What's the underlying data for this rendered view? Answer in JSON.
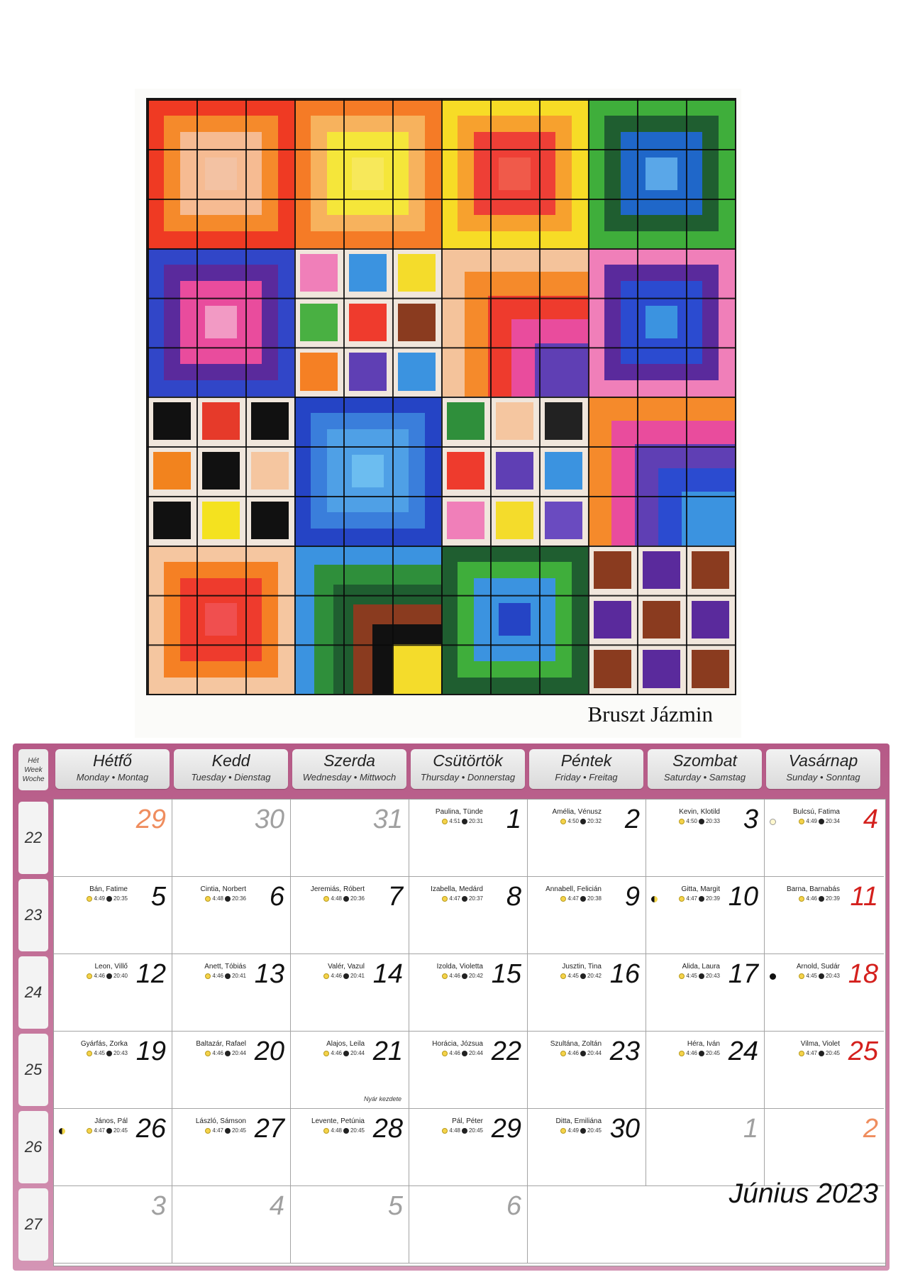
{
  "artwork": {
    "artist": "Bruszt Jázmin",
    "blocks": [
      {
        "type": "concentric",
        "colors": [
          "#ef3a23",
          "#f58a2b",
          "#f6bb92",
          "#f3c2a3"
        ]
      },
      {
        "type": "concentric",
        "colors": [
          "#f57b26",
          "#f7b25d",
          "#f5e63a",
          "#f7e85a"
        ]
      },
      {
        "type": "concentric",
        "colors": [
          "#f7dc26",
          "#f7a12e",
          "#ee3f36",
          "#f05a4a"
        ]
      },
      {
        "type": "concentric",
        "colors": [
          "#3fae3b",
          "#1f5e30",
          "#1f67c9",
          "#5aa7e8"
        ]
      },
      {
        "type": "concentric",
        "colors": [
          "#3146c8",
          "#5a2a9c",
          "#e94c9d",
          "#f29ac4"
        ]
      },
      {
        "type": "cells",
        "cells": [
          "#f07fb9",
          "#3b93e0",
          "#f4dc2b",
          "#49b042",
          "#ef3b2d",
          "#8a3b1f",
          "#f58024",
          "#5f3fb4",
          "#3b93e0"
        ]
      },
      {
        "type": "l-bands",
        "colors": [
          "#f4c39b",
          "#f58a2b",
          "#ee3b2d",
          "#e94c9d",
          "#5f3fb4"
        ]
      },
      {
        "type": "concentric",
        "colors": [
          "#f07fb9",
          "#5a2a9c",
          "#2b4bd0",
          "#3b93e0"
        ]
      },
      {
        "type": "cells",
        "cells": [
          "#111111",
          "#e63a2a",
          "#111111",
          "#f2831e",
          "#111111",
          "#f5c6a0",
          "#111111",
          "#f4e21f",
          "#111111"
        ]
      },
      {
        "type": "concentric",
        "colors": [
          "#2544c5",
          "#3a7edb",
          "#4fa0e6",
          "#6cbdf0"
        ]
      },
      {
        "type": "cells",
        "cells": [
          "#2f8f3b",
          "#f5c6a0",
          "#222222",
          "#ee3b2d",
          "#5f3fb4",
          "#3b93e0",
          "#f07fb9",
          "#f4dc2b",
          "#6a4bc0"
        ]
      },
      {
        "type": "l-bands",
        "colors": [
          "#f58a2b",
          "#e94c9d",
          "#5f3fb4",
          "#2b4bd0",
          "#3b93e0"
        ]
      },
      {
        "type": "concentric",
        "colors": [
          "#f5c6a0",
          "#f58024",
          "#ee3b2d",
          "#f04f4f"
        ]
      },
      {
        "type": "l-bands",
        "colors": [
          "#3b93e0",
          "#2f8f3b",
          "#1f5e30",
          "#8a3b1f",
          "#111111",
          "#f4dc2b"
        ]
      },
      {
        "type": "concentric",
        "colors": [
          "#1f5e30",
          "#3fae3b",
          "#3b93e0",
          "#2544c5"
        ]
      },
      {
        "type": "cells",
        "cells": [
          "#8a3b1f",
          "#5a2a9c",
          "#8a3b1f",
          "#5a2a9c",
          "#8a3b1f",
          "#5a2a9c",
          "#8a3b1f",
          "#5a2a9c",
          "#8a3b1f"
        ]
      }
    ]
  },
  "calendar": {
    "week_header": [
      "Hét",
      "Week",
      "Woche"
    ],
    "days": [
      {
        "name": "Hétfő",
        "sub": "Monday • Montag"
      },
      {
        "name": "Kedd",
        "sub": "Tuesday • Dienstag"
      },
      {
        "name": "Szerda",
        "sub": "Wednesday • Mittwoch"
      },
      {
        "name": "Csütörtök",
        "sub": "Thursday • Donnerstag"
      },
      {
        "name": "Péntek",
        "sub": "Friday • Freitag"
      },
      {
        "name": "Szombat",
        "sub": "Saturday • Samstag"
      },
      {
        "name": "Vasárnap",
        "sub": "Sunday • Sonntag"
      }
    ],
    "weeks": [
      "22",
      "23",
      "24",
      "25",
      "26",
      "27"
    ],
    "cells": [
      [
        {
          "n": "29",
          "c": "orange"
        },
        {
          "n": "30",
          "c": "gray"
        },
        {
          "n": "31",
          "c": "gray"
        },
        {
          "n": "1",
          "names": "Paulina, Tünde",
          "rise": "4:51",
          "set": "20:31"
        },
        {
          "n": "2",
          "names": "Amélia, Vénusz",
          "rise": "4:50",
          "set": "20:32"
        },
        {
          "n": "3",
          "names": "Kevin, Klotild",
          "rise": "4:50",
          "set": "20:33"
        },
        {
          "n": "4",
          "c": "red",
          "names": "Bulcsú, Fatima",
          "rise": "4:49",
          "set": "20:34",
          "moon": "full"
        }
      ],
      [
        {
          "n": "5",
          "names": "Bán, Fatime",
          "rise": "4:49",
          "set": "20:35"
        },
        {
          "n": "6",
          "names": "Cintia, Norbert",
          "rise": "4:48",
          "set": "20:36"
        },
        {
          "n": "7",
          "names": "Jeremiás, Róbert",
          "rise": "4:48",
          "set": "20:36"
        },
        {
          "n": "8",
          "names": "Izabella, Medárd",
          "rise": "4:47",
          "set": "20:37"
        },
        {
          "n": "9",
          "names": "Annabell, Felicián",
          "rise": "4:47",
          "set": "20:38"
        },
        {
          "n": "10",
          "names": "Gitta, Margit",
          "rise": "4:47",
          "set": "20:39",
          "moon": "half"
        },
        {
          "n": "11",
          "c": "red",
          "names": "Barna, Barnabás",
          "rise": "4:46",
          "set": "20:39"
        }
      ],
      [
        {
          "n": "12",
          "names": "Leon, Villő",
          "rise": "4:46",
          "set": "20:40"
        },
        {
          "n": "13",
          "names": "Anett, Tóbiás",
          "rise": "4:46",
          "set": "20:41"
        },
        {
          "n": "14",
          "names": "Valér, Vazul",
          "rise": "4:46",
          "set": "20:41"
        },
        {
          "n": "15",
          "names": "Izolda, Violetta",
          "rise": "4:46",
          "set": "20:42"
        },
        {
          "n": "16",
          "names": "Jusztin, Tina",
          "rise": "4:45",
          "set": "20:42"
        },
        {
          "n": "17",
          "names": "Alida, Laura",
          "rise": "4:45",
          "set": "20:43"
        },
        {
          "n": "18",
          "c": "red",
          "names": "Arnold, Sudár",
          "rise": "4:45",
          "set": "20:43",
          "moon": "new"
        }
      ],
      [
        {
          "n": "19",
          "names": "Gyárfás, Zorka",
          "rise": "4:45",
          "set": "20:43"
        },
        {
          "n": "20",
          "names": "Baltazár, Rafael",
          "rise": "4:46",
          "set": "20:44"
        },
        {
          "n": "21",
          "names": "Alajos, Leila",
          "rise": "4:46",
          "set": "20:44",
          "note": "Nyár kezdete"
        },
        {
          "n": "22",
          "names": "Horácia, Józsua",
          "rise": "4:46",
          "set": "20:44"
        },
        {
          "n": "23",
          "names": "Szultána, Zoltán",
          "rise": "4:46",
          "set": "20:44"
        },
        {
          "n": "24",
          "names": "Héra, Iván",
          "rise": "4:46",
          "set": "20:45"
        },
        {
          "n": "25",
          "c": "red",
          "names": "Vilma, Violet",
          "rise": "4:47",
          "set": "20:45"
        }
      ],
      [
        {
          "n": "26",
          "names": "János, Pál",
          "rise": "4:47",
          "set": "20:45",
          "moon": "half"
        },
        {
          "n": "27",
          "names": "László, Sámson",
          "rise": "4:47",
          "set": "20:45"
        },
        {
          "n": "28",
          "names": "Levente, Petúnia",
          "rise": "4:48",
          "set": "20:45"
        },
        {
          "n": "29",
          "names": "Pál, Péter",
          "rise": "4:48",
          "set": "20:45"
        },
        {
          "n": "30",
          "names": "Ditta, Emiliána",
          "rise": "4:49",
          "set": "20:45"
        },
        {
          "n": "1",
          "c": "gray"
        },
        {
          "n": "2",
          "c": "orange"
        }
      ],
      [
        {
          "n": "3",
          "c": "gray"
        },
        {
          "n": "4",
          "c": "gray"
        },
        {
          "n": "5",
          "c": "gray"
        },
        {
          "n": "6",
          "c": "gray"
        }
      ]
    ],
    "month_title": "Június 2023"
  }
}
